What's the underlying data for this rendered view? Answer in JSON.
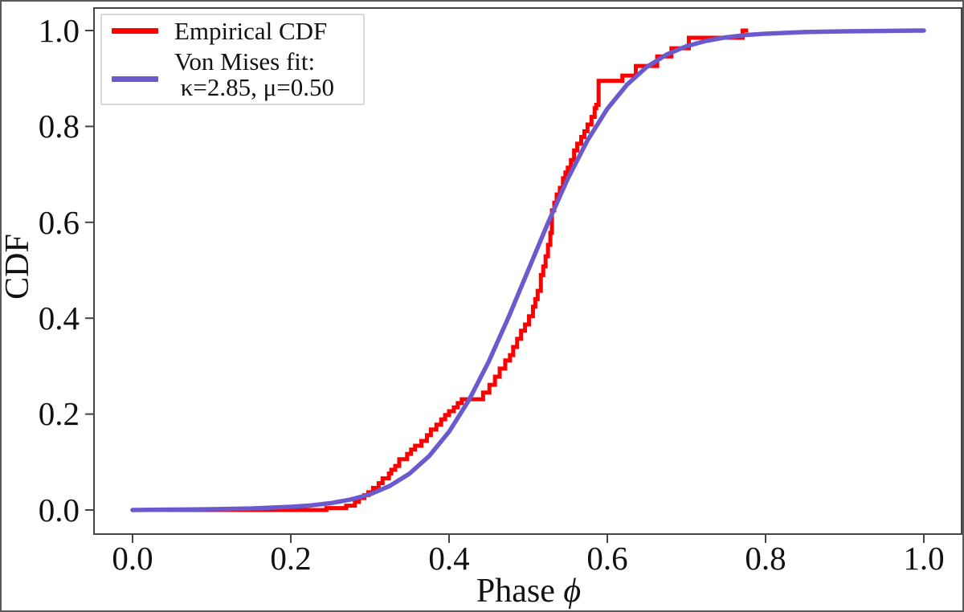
{
  "figure": {
    "background": "#ffffff",
    "frame_color": "#444444",
    "text_color": "#111111"
  },
  "axes": {
    "xlabel_text": "Phase ",
    "xlabel_symbol": "ϕ",
    "ylabel": "CDF",
    "x_ticks": [
      "0.0",
      "0.2",
      "0.4",
      "0.6",
      "0.8",
      "1.0"
    ],
    "y_ticks_top_to_bottom": [
      "1.0",
      "0.8",
      "0.6",
      "0.4",
      "0.2",
      "0.0"
    ],
    "x_tick_values": [
      0.0,
      0.2,
      0.4,
      0.6,
      0.8,
      1.0
    ],
    "y_tick_values": [
      0.0,
      0.2,
      0.4,
      0.6,
      0.8,
      1.0
    ],
    "xlim": [
      -0.049,
      1.051
    ],
    "ylim": [
      -0.05,
      1.047
    ],
    "grid": false
  },
  "legend": {
    "position": "upper left",
    "entries": [
      {
        "label_lines": [
          "Empirical CDF"
        ],
        "color": "#ff0000"
      },
      {
        "label_lines": [
          "Von Mises fit:",
          " κ=2.85, μ=0.50"
        ],
        "color": "#6a5acd"
      }
    ]
  },
  "chart_data": {
    "type": "line",
    "title": "",
    "xlabel": "Phase ϕ",
    "ylabel": "CDF",
    "xlim": [
      -0.049,
      1.051
    ],
    "ylim": [
      -0.05,
      1.047
    ],
    "legend_position": "upper left",
    "grid": false,
    "fit_params": {
      "kappa": 2.85,
      "mu": 0.5
    },
    "series": [
      {
        "name": "Empirical CDF",
        "color": "#ff0000",
        "style": "step",
        "line_width": 5,
        "points": [
          [
            0.245,
            0.004
          ],
          [
            0.27,
            0.009
          ],
          [
            0.281,
            0.017
          ],
          [
            0.286,
            0.025
          ],
          [
            0.293,
            0.031
          ],
          [
            0.298,
            0.037
          ],
          [
            0.304,
            0.046
          ],
          [
            0.311,
            0.056
          ],
          [
            0.316,
            0.066
          ],
          [
            0.324,
            0.076
          ],
          [
            0.327,
            0.084
          ],
          [
            0.332,
            0.092
          ],
          [
            0.337,
            0.106
          ],
          [
            0.347,
            0.117
          ],
          [
            0.352,
            0.126
          ],
          [
            0.357,
            0.134
          ],
          [
            0.365,
            0.144
          ],
          [
            0.372,
            0.156
          ],
          [
            0.377,
            0.168
          ],
          [
            0.384,
            0.178
          ],
          [
            0.39,
            0.189
          ],
          [
            0.395,
            0.198
          ],
          [
            0.4,
            0.206
          ],
          [
            0.406,
            0.214
          ],
          [
            0.411,
            0.223
          ],
          [
            0.416,
            0.231
          ],
          [
            0.443,
            0.245
          ],
          [
            0.451,
            0.261
          ],
          [
            0.458,
            0.278
          ],
          [
            0.464,
            0.295
          ],
          [
            0.471,
            0.312
          ],
          [
            0.477,
            0.323
          ],
          [
            0.481,
            0.34
          ],
          [
            0.486,
            0.357
          ],
          [
            0.491,
            0.374
          ],
          [
            0.496,
            0.387
          ],
          [
            0.501,
            0.404
          ],
          [
            0.506,
            0.424
          ],
          [
            0.509,
            0.44
          ],
          [
            0.512,
            0.457
          ],
          [
            0.516,
            0.49
          ],
          [
            0.519,
            0.508
          ],
          [
            0.522,
            0.529
          ],
          [
            0.525,
            0.553
          ],
          [
            0.528,
            0.578
          ],
          [
            0.53,
            0.625
          ],
          [
            0.533,
            0.641
          ],
          [
            0.536,
            0.658
          ],
          [
            0.54,
            0.672
          ],
          [
            0.544,
            0.692
          ],
          [
            0.547,
            0.704
          ],
          [
            0.55,
            0.714
          ],
          [
            0.554,
            0.73
          ],
          [
            0.558,
            0.75
          ],
          [
            0.562,
            0.764
          ],
          [
            0.567,
            0.778
          ],
          [
            0.571,
            0.79
          ],
          [
            0.575,
            0.804
          ],
          [
            0.58,
            0.82
          ],
          [
            0.584,
            0.838
          ],
          [
            0.586,
            0.845
          ],
          [
            0.589,
            0.895
          ],
          [
            0.619,
            0.906
          ],
          [
            0.636,
            0.926
          ],
          [
            0.663,
            0.946
          ],
          [
            0.681,
            0.963
          ],
          [
            0.703,
            0.985
          ],
          [
            0.771,
            1.0
          ],
          [
            0.778,
            1.0
          ]
        ]
      },
      {
        "name": "Von Mises fit: κ=2.85, μ=0.50",
        "color": "#6a5acd",
        "style": "smooth",
        "line_width": 5.5,
        "points": [
          [
            0.0,
            0.0
          ],
          [
            0.05,
            0.0008
          ],
          [
            0.1,
            0.0016
          ],
          [
            0.15,
            0.0032
          ],
          [
            0.2,
            0.0066
          ],
          [
            0.225,
            0.0095
          ],
          [
            0.25,
            0.0142
          ],
          [
            0.275,
            0.0216
          ],
          [
            0.3,
            0.0327
          ],
          [
            0.325,
            0.0501
          ],
          [
            0.35,
            0.0758
          ],
          [
            0.375,
            0.1128
          ],
          [
            0.4,
            0.1632
          ],
          [
            0.425,
            0.2289
          ],
          [
            0.45,
            0.3091
          ],
          [
            0.475,
            0.4013
          ],
          [
            0.5,
            0.5
          ],
          [
            0.525,
            0.5987
          ],
          [
            0.55,
            0.6909
          ],
          [
            0.575,
            0.7711
          ],
          [
            0.6,
            0.8368
          ],
          [
            0.625,
            0.8872
          ],
          [
            0.65,
            0.9242
          ],
          [
            0.675,
            0.9499
          ],
          [
            0.7,
            0.9673
          ],
          [
            0.725,
            0.9784
          ],
          [
            0.75,
            0.9858
          ],
          [
            0.775,
            0.9905
          ],
          [
            0.8,
            0.9934
          ],
          [
            0.85,
            0.9968
          ],
          [
            0.9,
            0.9984
          ],
          [
            0.95,
            0.9992
          ],
          [
            1.0,
            1.0
          ]
        ]
      }
    ]
  }
}
